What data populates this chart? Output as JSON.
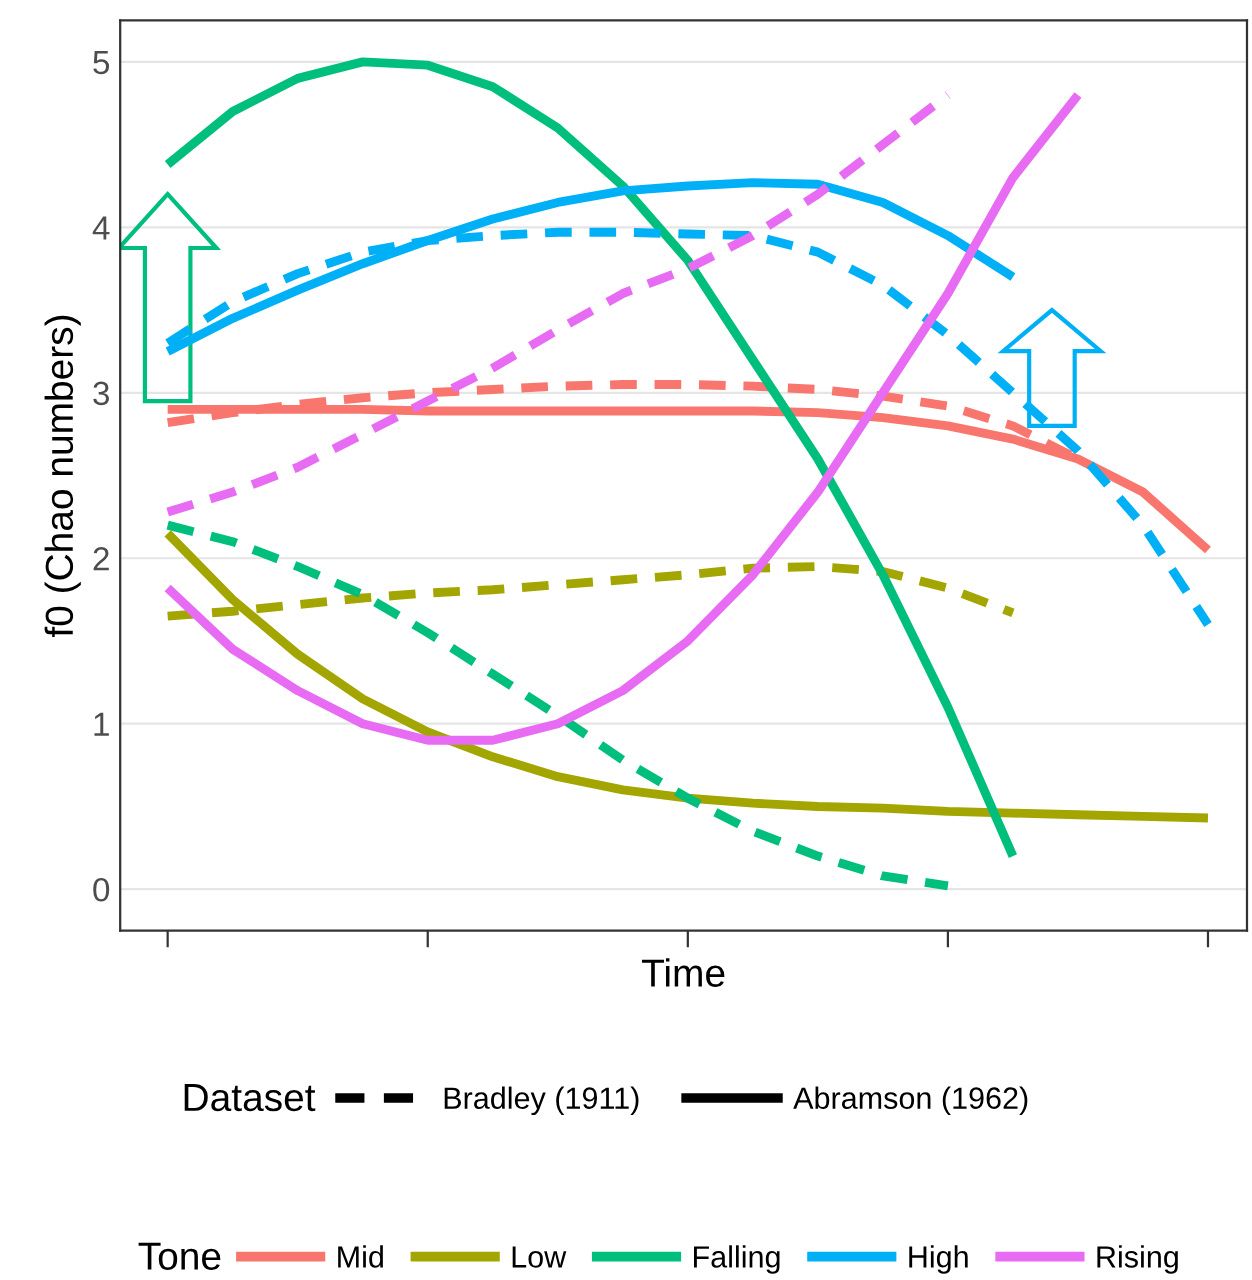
{
  "chart_data": {
    "type": "line",
    "xlabel": "Time",
    "ylabel": "f0 (Chao numbers)",
    "categories": [
      null,
      null,
      null,
      null,
      null,
      null,
      null,
      null,
      null,
      null,
      null,
      null,
      null,
      null,
      null,
      null,
      null
    ],
    "ylim": [
      -0.25,
      5.25
    ],
    "yticks": [
      0,
      1,
      2,
      3,
      4,
      5
    ],
    "grid": "y",
    "tick_labels": "y",
    "legend": "bottom",
    "legend_title": "Tone",
    "annotations": [
      "Dataset",
      "Bradley (1911)",
      "Abramson (1962)"
    ],
    "series": [
      {
        "color": "#f8766d",
        "line_style": "dashed",
        "values": [
          2.82,
          2.88,
          2.93,
          2.97,
          3.0,
          3.02,
          3.04,
          3.05,
          3.05,
          3.04,
          3.02,
          2.98,
          2.92,
          2.8,
          2.6,
          null,
          null
        ]
      },
      {
        "name": "Mid",
        "color": "#f8766d",
        "line_style": "solid",
        "values": [
          2.9,
          2.9,
          2.9,
          2.9,
          2.89,
          2.89,
          2.89,
          2.89,
          2.89,
          2.89,
          2.88,
          2.85,
          2.8,
          2.72,
          2.6,
          2.4,
          2.05
        ]
      },
      {
        "name": "Low",
        "color": "#a3a500",
        "line_style": "solid",
        "values": [
          2.15,
          1.75,
          1.42,
          1.15,
          0.95,
          0.8,
          0.68,
          0.6,
          0.55,
          0.52,
          0.5,
          0.49,
          0.47,
          0.46,
          0.45,
          0.44,
          0.43
        ]
      },
      {
        "color": "#a3a500",
        "line_style": "dashed",
        "values": [
          1.65,
          1.68,
          1.72,
          1.76,
          1.79,
          1.81,
          1.84,
          1.87,
          1.9,
          1.94,
          1.95,
          1.92,
          1.82,
          1.67,
          null,
          null,
          null
        ]
      },
      {
        "name": "Falling",
        "color": "#00bf7d",
        "line_style": "solid",
        "values": [
          4.38,
          4.7,
          4.9,
          5.0,
          4.98,
          4.85,
          4.6,
          4.25,
          3.8,
          3.2,
          2.6,
          1.9,
          1.1,
          0.2,
          null,
          null,
          null
        ]
      },
      {
        "color": "#00bf7d",
        "line_style": "dashed",
        "values": [
          2.2,
          2.1,
          1.95,
          1.78,
          1.55,
          1.3,
          1.05,
          0.78,
          0.55,
          0.35,
          0.2,
          0.08,
          0.02,
          null,
          null,
          null,
          null
        ]
      },
      {
        "name": "High",
        "color": "#00b0f6",
        "line_style": "solid",
        "values": [
          3.25,
          3.45,
          3.62,
          3.78,
          3.92,
          4.05,
          4.15,
          4.22,
          4.25,
          4.27,
          4.26,
          4.15,
          3.95,
          3.7,
          null,
          null,
          null
        ]
      },
      {
        "color": "#00b0f6",
        "line_style": "dashed",
        "values": [
          3.3,
          3.55,
          3.72,
          3.85,
          3.92,
          3.95,
          3.97,
          3.97,
          3.96,
          3.95,
          3.85,
          3.65,
          3.35,
          3.0,
          2.65,
          2.2,
          1.6
        ]
      },
      {
        "name": "Rising",
        "color": "#e76bf3",
        "line_style": "solid",
        "values": [
          1.82,
          1.45,
          1.2,
          1.0,
          0.9,
          0.9,
          1.0,
          1.2,
          1.5,
          1.9,
          2.4,
          3.0,
          3.6,
          4.3,
          4.8,
          null,
          null
        ]
      },
      {
        "color": "#e76bf3",
        "line_style": "dashed",
        "values": [
          2.28,
          2.4,
          2.55,
          2.75,
          2.95,
          3.15,
          3.38,
          3.6,
          3.75,
          3.95,
          4.2,
          4.5,
          4.8,
          null,
          null,
          null,
          null
        ]
      }
    ]
  }
}
